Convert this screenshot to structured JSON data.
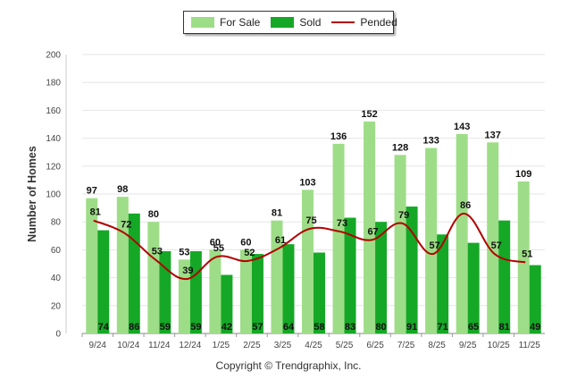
{
  "chart_data": {
    "type": "bar",
    "title": "",
    "xlabel": "",
    "ylabel": "Number of Homes",
    "ylim": [
      0,
      200
    ],
    "yticks": [
      0,
      20,
      40,
      60,
      80,
      100,
      120,
      140,
      160,
      180,
      200
    ],
    "categories": [
      "9/24",
      "10/24",
      "11/24",
      "12/24",
      "1/25",
      "2/25",
      "3/25",
      "4/25",
      "5/25",
      "6/25",
      "7/25",
      "8/25",
      "9/25",
      "10/25",
      "11/25"
    ],
    "series": [
      {
        "name": "For Sale",
        "kind": "bar",
        "color": "#9edd87",
        "values": [
          97,
          98,
          80,
          53,
          60,
          60,
          81,
          103,
          136,
          152,
          128,
          133,
          143,
          137,
          109
        ]
      },
      {
        "name": "Sold",
        "kind": "bar",
        "color": "#15a826",
        "values": [
          74,
          86,
          59,
          59,
          42,
          57,
          64,
          58,
          83,
          80,
          91,
          71,
          65,
          81,
          49
        ]
      },
      {
        "name": "Pended",
        "kind": "line",
        "color": "#b30000",
        "values": [
          81,
          72,
          53,
          39,
          55,
          52,
          61,
          75,
          73,
          67,
          79,
          57,
          86,
          57,
          51
        ]
      }
    ],
    "legend_position": "top-center",
    "grid": true
  },
  "footer": {
    "copyright": "Copyright © Trendgraphix, Inc."
  }
}
